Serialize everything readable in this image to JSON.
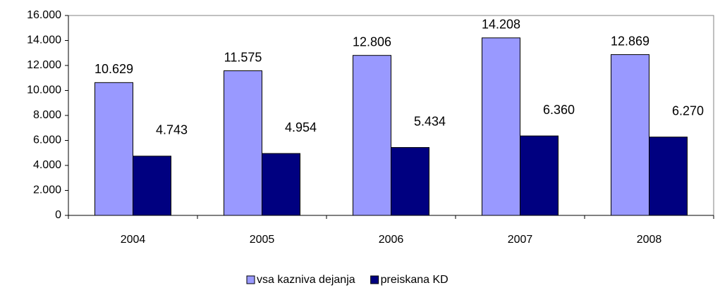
{
  "chart_data": {
    "type": "bar",
    "categories": [
      "2004",
      "2005",
      "2006",
      "2007",
      "2008"
    ],
    "series": [
      {
        "name": "vsa kazniva dejanja",
        "color": "#9999ff",
        "values": [
          10629,
          11575,
          12806,
          14208,
          12869
        ],
        "value_labels": [
          "10.629",
          "11.575",
          "12.806",
          "14.208",
          "12.869"
        ]
      },
      {
        "name": "preiskana KD",
        "color": "#000080",
        "values": [
          4743,
          4954,
          5434,
          6360,
          6270
        ],
        "value_labels": [
          "4.743",
          "4.954",
          "5.434",
          "6.360",
          "6.270"
        ]
      }
    ],
    "ylim": [
      0,
      16000
    ],
    "yticks": [
      0,
      {
        "value": 2000,
        "label": "2.000"
      },
      {
        "value": 4000,
        "label": "4.000"
      },
      {
        "value": 6000,
        "label": "6.000"
      },
      {
        "value": 8000,
        "label": "8.000"
      },
      {
        "value": 10000,
        "label": "10.000"
      },
      {
        "value": 12000,
        "label": "12.000"
      },
      {
        "value": 14000,
        "label": "14.000"
      },
      {
        "value": 16000,
        "label": "16.000"
      }
    ],
    "legend": "bottom"
  }
}
